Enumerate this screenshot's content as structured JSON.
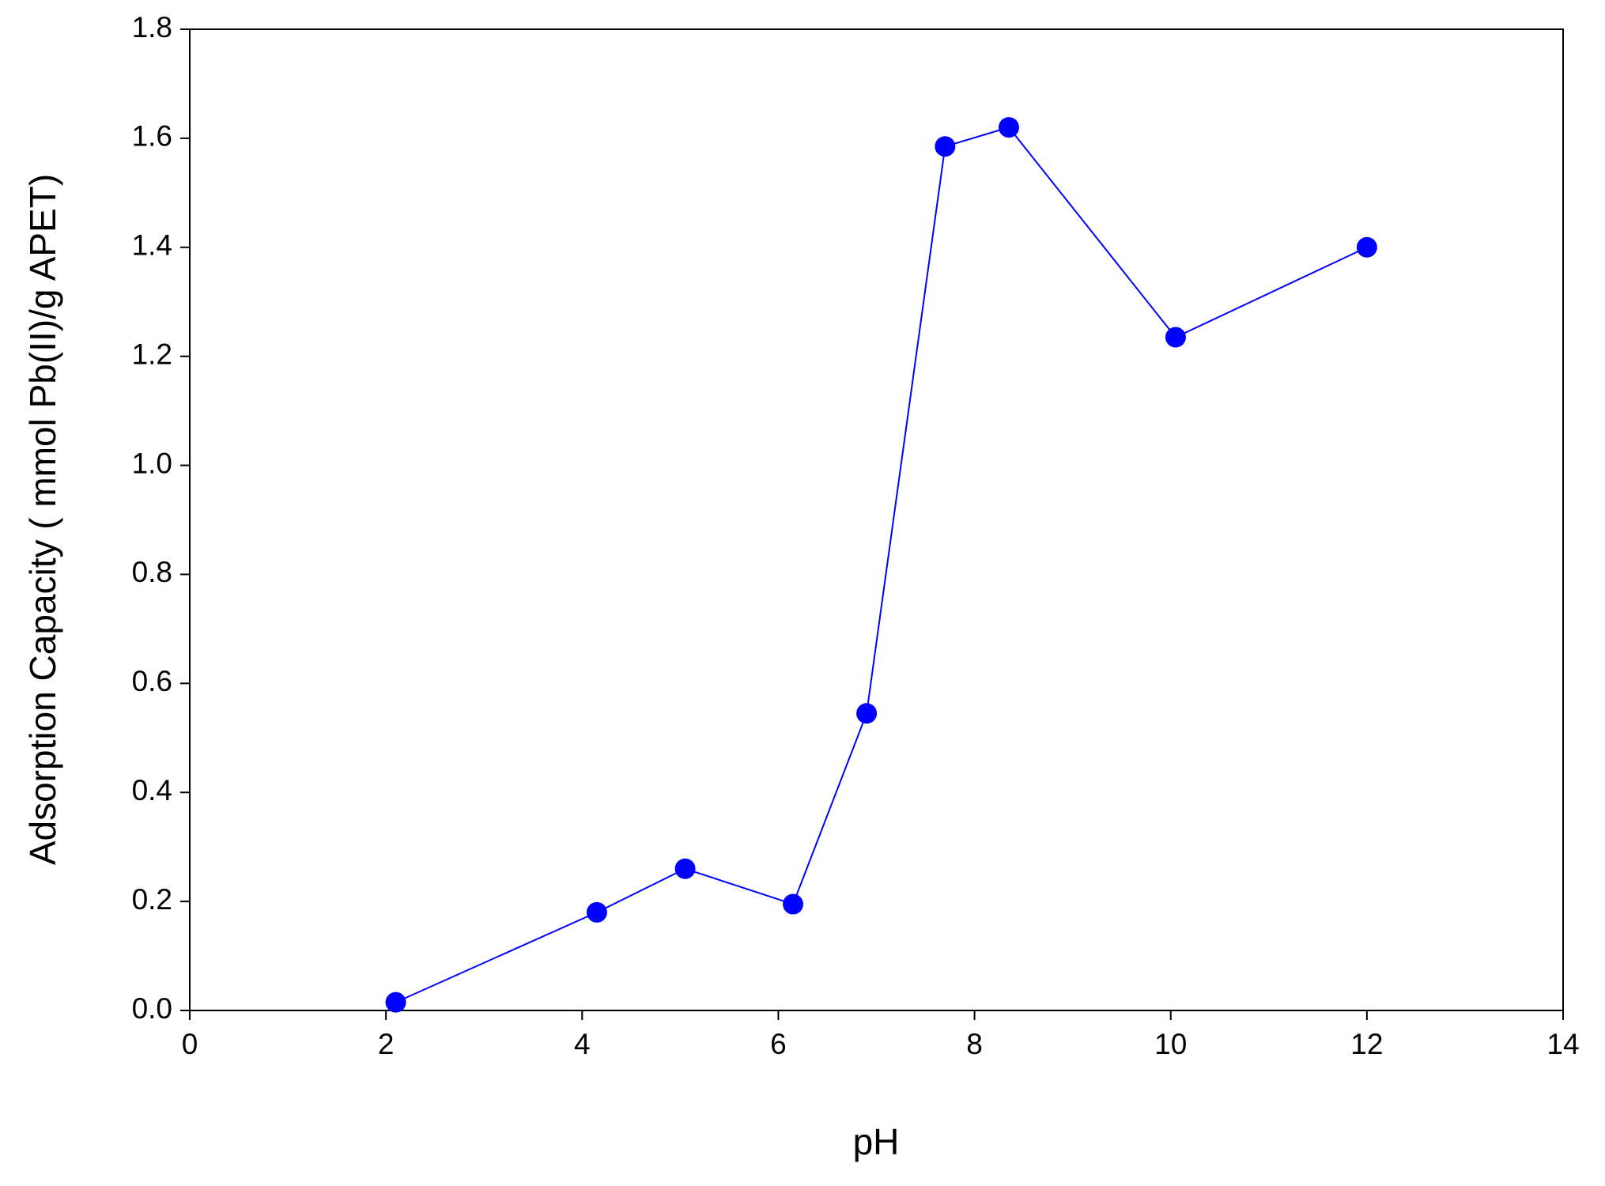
{
  "chart_data": {
    "type": "line",
    "x_label": "pH",
    "y_label": "Adsorption Capacity ( mmol Pb(II)/g APET)",
    "x": [
      2.1,
      4.15,
      5.05,
      6.15,
      6.9,
      7.7,
      8.35,
      10.05,
      12.0
    ],
    "values": [
      0.015,
      0.18,
      0.26,
      0.195,
      0.545,
      1.585,
      1.62,
      1.235,
      1.4
    ],
    "color": "#0000ff",
    "xlim": [
      0,
      14
    ],
    "xticks": [
      0,
      2,
      4,
      6,
      8,
      10,
      12,
      14
    ],
    "ylim": [
      0,
      1.8
    ],
    "yticks": [
      {
        "value": 0,
        "label": "0.0"
      },
      0.2,
      0.4,
      0.6,
      0.8,
      {
        "value": 1,
        "label": "1.0"
      },
      1.2,
      1.4,
      1.6,
      1.8
    ],
    "grid": false
  }
}
